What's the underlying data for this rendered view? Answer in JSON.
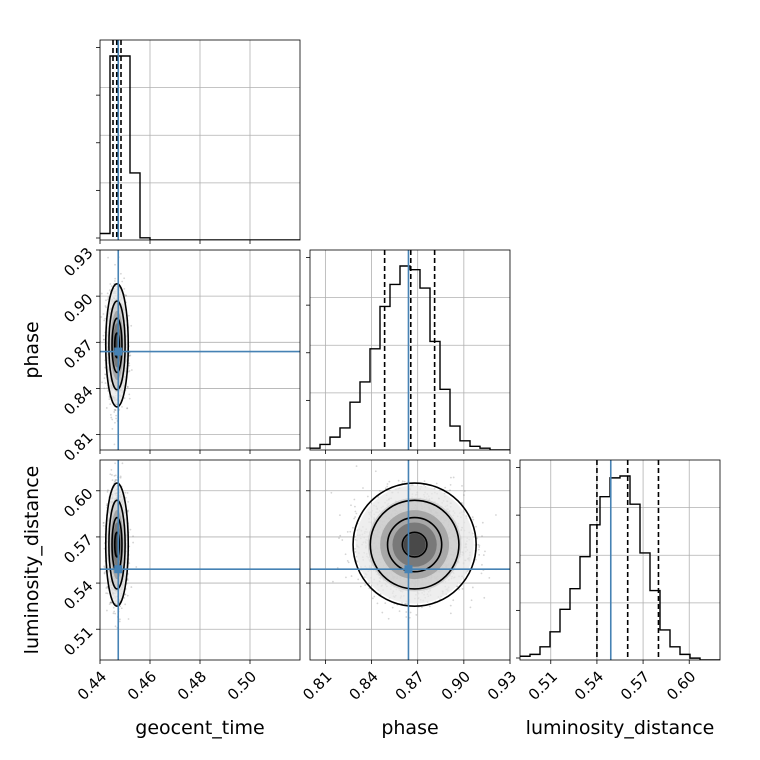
{
  "chart_data": {
    "type": "corner",
    "parameters": [
      "geocent_time",
      "phase",
      "luminosity_distance"
    ],
    "axis_labels": {
      "geocent_time": "geocent_time",
      "phase": "phase",
      "luminosity_distance": "luminosity_distance"
    },
    "ranges": {
      "geocent_time": [
        0.44,
        0.52
      ],
      "phase": [
        0.8,
        0.93
      ],
      "luminosity_distance": [
        0.49,
        0.62
      ]
    },
    "ticks": {
      "geocent_time": [
        "0.44",
        "0.46",
        "0.48",
        "0.50"
      ],
      "phase": [
        "0.81",
        "0.84",
        "0.87",
        "0.90",
        "0.93"
      ],
      "luminosity_distance": [
        "0.51",
        "0.54",
        "0.57",
        "0.60"
      ]
    },
    "truths": {
      "geocent_time": 0.4473,
      "phase": 0.864,
      "luminosity_distance": 0.549
    },
    "quantiles": {
      "geocent_time": [
        0.4452,
        0.4467,
        0.4484
      ],
      "phase": [
        0.8485,
        0.8655,
        0.881
      ],
      "luminosity_distance": [
        0.54,
        0.56,
        0.58
      ]
    },
    "histograms": {
      "geocent_time": {
        "edges_range": [
          0.44,
          0.52
        ],
        "bins": 20,
        "counts": [
          3,
          85,
          85,
          31,
          1,
          0,
          0,
          0,
          0,
          0,
          0,
          0,
          0,
          0,
          0,
          0,
          0,
          0,
          0,
          0
        ]
      },
      "phase": {
        "edges_range": [
          0.8,
          0.93
        ],
        "bins": 20,
        "counts": [
          1,
          3,
          7,
          12,
          26,
          37,
          55,
          78,
          90,
          100,
          98,
          88,
          59,
          33,
          13,
          5,
          2,
          1,
          0,
          0
        ]
      },
      "luminosity_distance": {
        "edges_range": [
          0.49,
          0.62
        ],
        "bins": 20,
        "counts": [
          2,
          3,
          7,
          15,
          27,
          38,
          55,
          72,
          87,
          97,
          98,
          83,
          57,
          37,
          16,
          7,
          3,
          1,
          0,
          0
        ]
      }
    },
    "density_centers": {
      "geocent_time|phase": {
        "x": 0.4468,
        "y": 0.868,
        "sx": 0.0018,
        "sy": 0.016
      },
      "geocent_time|luminosity_distance": {
        "x": 0.4468,
        "y": 0.565,
        "sx": 0.0018,
        "sy": 0.016
      },
      "phase|luminosity_distance": {
        "x": 0.868,
        "y": 0.565,
        "sx": 0.016,
        "sy": 0.016
      }
    },
    "colors": {
      "truth": "#4682b4",
      "hist": "#000000",
      "quantile": "#000000",
      "grid": "#b0b0b0",
      "points": "#888888"
    },
    "grid": true
  }
}
